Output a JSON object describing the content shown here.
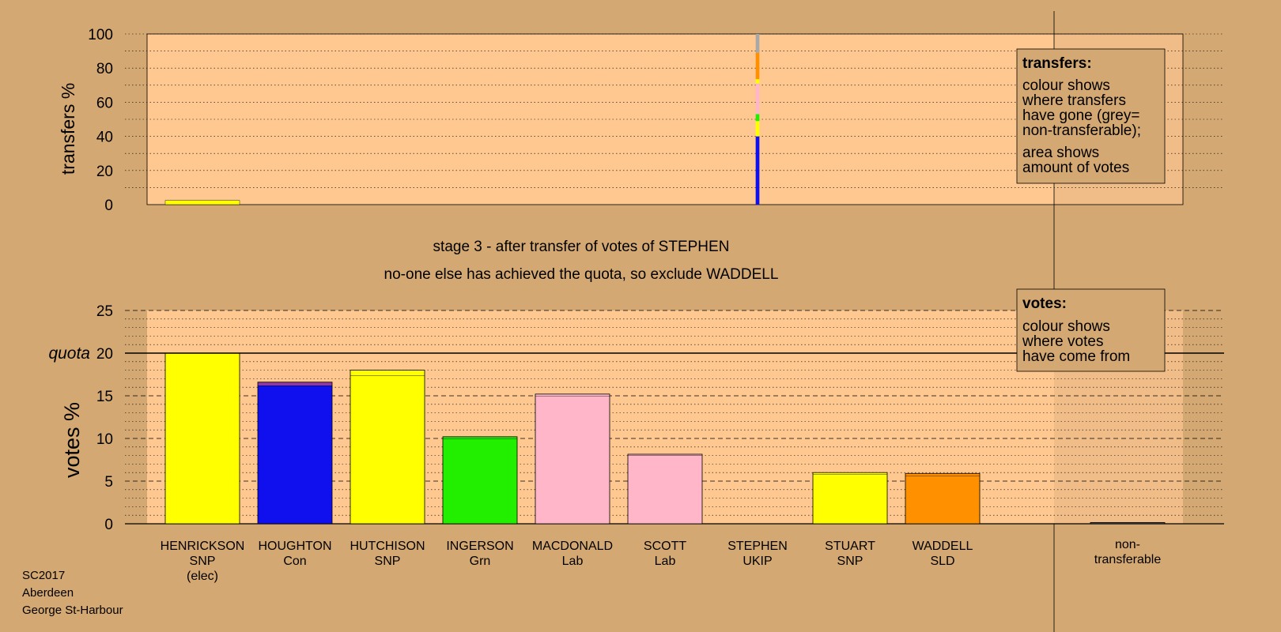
{
  "chart_data": [
    {
      "type": "bar",
      "panel": "transfers",
      "ylabel": "transfers %",
      "ylim": [
        0,
        100
      ],
      "yticks": [
        0,
        20,
        40,
        60,
        80,
        100
      ],
      "grid": "dotted every 10",
      "legend": {
        "placement": "top-right",
        "title": "transfers:",
        "lines": [
          "colour shows",
          "where transfers",
          "have gone (grey=",
          "non-transferable);"
        ],
        "lines2": [
          "area shows",
          "amount of votes"
        ]
      },
      "columns": [
        {
          "candidate": "HENRICKSON",
          "width_fraction": 1.0,
          "segments": [
            {
              "value": 2.5,
              "color": "#ffff00"
            }
          ]
        },
        {
          "candidate": "STEPHEN",
          "width_fraction": 0.05,
          "segments": [
            {
              "value": 40,
              "color": "#1010ee"
            },
            {
              "value": 9,
              "color": "#ffff00"
            },
            {
              "value": 4,
              "color": "#22ee00"
            },
            {
              "value": 18,
              "color": "#ffb6c8"
            },
            {
              "value": 2.5,
              "color": "#ffff00"
            },
            {
              "value": 15.5,
              "color": "#ff9000"
            },
            {
              "value": 11,
              "color": "#a8a8a8"
            }
          ]
        }
      ]
    },
    {
      "type": "bar",
      "panel": "votes",
      "ylabel": "votes %",
      "ylim": [
        0,
        25
      ],
      "yticks": [
        0,
        5,
        10,
        15,
        20,
        25
      ],
      "quota": {
        "label": "quota",
        "value": 20
      },
      "grid": "dashed every 5, dotted every 1",
      "legend": {
        "placement": "top-right",
        "title": "votes:",
        "lines": [
          "colour shows",
          "where votes",
          "have come from"
        ]
      },
      "categories": [
        {
          "name": "HENRICKSON",
          "party": "SNP",
          "note": "(elec)",
          "segments": [
            {
              "value": 20.0,
              "color": "#ffff00"
            }
          ]
        },
        {
          "name": "HOUGHTON",
          "party": "Con",
          "note": "",
          "segments": [
            {
              "value": 16.2,
              "color": "#1010ee"
            },
            {
              "value": 0.4,
              "color": "#8a3aa0"
            }
          ]
        },
        {
          "name": "HUTCHISON",
          "party": "SNP",
          "note": "",
          "segments": [
            {
              "value": 17.4,
              "color": "#ffff00"
            },
            {
              "value": 0.6,
              "color": "#ffff00"
            }
          ]
        },
        {
          "name": "INGERSON",
          "party": "Grn",
          "note": "",
          "segments": [
            {
              "value": 10.0,
              "color": "#22ee00"
            },
            {
              "value": 0.2,
              "color": "#22ee00"
            }
          ]
        },
        {
          "name": "MACDONALD",
          "party": "Lab",
          "note": "",
          "segments": [
            {
              "value": 15.0,
              "color": "#ffb6c8"
            },
            {
              "value": 0.2,
              "color": "#ffb6c8"
            }
          ]
        },
        {
          "name": "SCOTT",
          "party": "Lab",
          "note": "",
          "segments": [
            {
              "value": 8.0,
              "color": "#ffb6c8"
            },
            {
              "value": 0.15,
              "color": "#ffb6c8"
            }
          ]
        },
        {
          "name": "STEPHEN",
          "party": "UKIP",
          "note": "",
          "segments": []
        },
        {
          "name": "STUART",
          "party": "SNP",
          "note": "",
          "segments": [
            {
              "value": 5.8,
              "color": "#ffff00"
            },
            {
              "value": 0.2,
              "color": "#ffff00"
            }
          ]
        },
        {
          "name": "WADDELL",
          "party": "SLD",
          "note": "",
          "segments": [
            {
              "value": 5.6,
              "color": "#ff9000"
            },
            {
              "value": 0.3,
              "color": "#ff9000"
            }
          ]
        }
      ],
      "nontransferable": {
        "label_line1": "non-",
        "label_line2": "transferable",
        "value": 0.15
      }
    }
  ],
  "headings": {
    "stage": "stage 3 - after transfer of votes of STEPHEN",
    "action": "no-one else has achieved the quota, so exclude WADDELL"
  },
  "footer": {
    "line1": "SC2017",
    "line2": "Aberdeen",
    "line3": "George St-Harbour"
  },
  "colors": {
    "background": "#d4a872",
    "plot_background": "#ffc890",
    "legend_background": "#d4a872"
  }
}
